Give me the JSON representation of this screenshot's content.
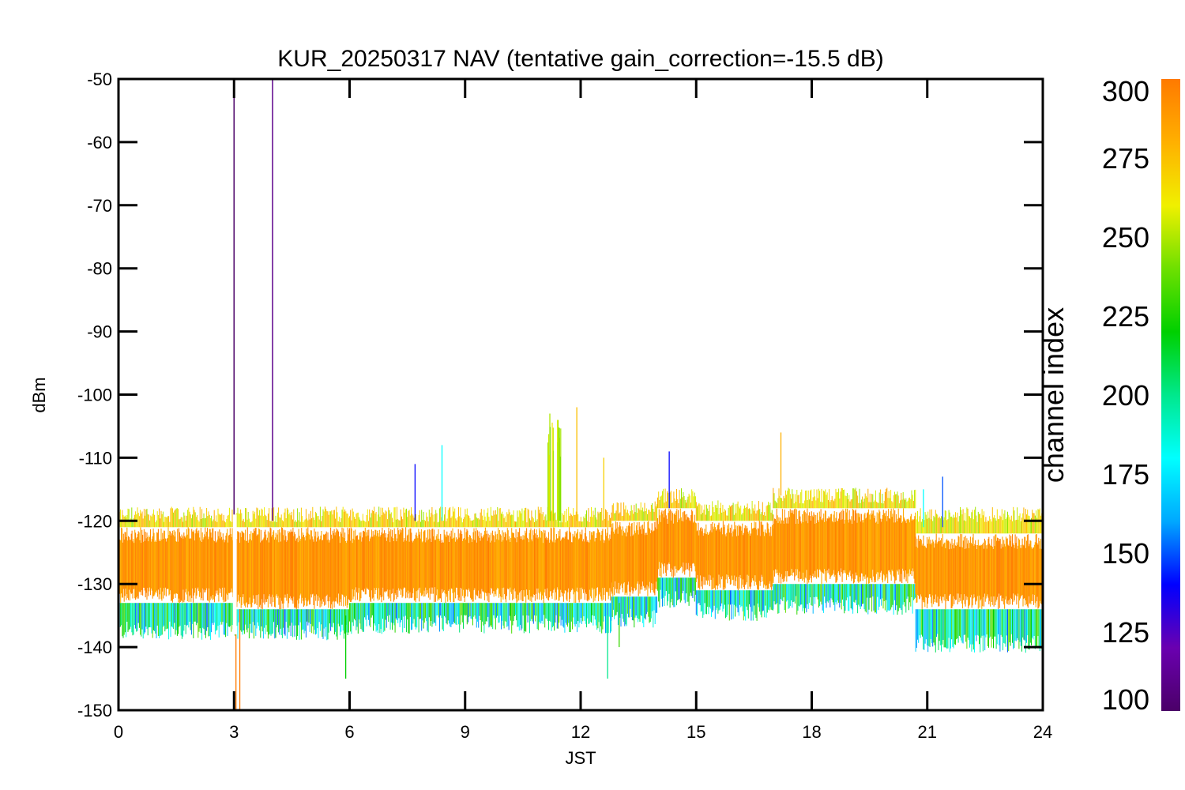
{
  "chart_data": {
    "type": "line",
    "title": "KUR_20250317 NAV (tentative gain_correction=-15.5 dB)",
    "xlabel": "JST",
    "ylabel": "dBm",
    "xlim": [
      0,
      24
    ],
    "ylim": [
      -150,
      -50
    ],
    "x_ticks": [
      0,
      3,
      6,
      9,
      12,
      15,
      18,
      21,
      24
    ],
    "y_ticks": [
      -50,
      -60,
      -70,
      -80,
      -90,
      -100,
      -110,
      -120,
      -130,
      -140,
      -150
    ],
    "grid": false,
    "colorbar": {
      "label": "channel index",
      "range": [
        100,
        300
      ],
      "ticks": [
        100,
        125,
        150,
        175,
        200,
        225,
        250,
        275,
        300
      ],
      "colors": [
        "#4b0068",
        "#6a00b0",
        "#0000ff",
        "#00a8ff",
        "#00ffff",
        "#00e88c",
        "#00d000",
        "#6ee000",
        "#f0f000",
        "#ffb000",
        "#ff7a00"
      ]
    },
    "bands": [
      {
        "x": [
          0,
          3
        ],
        "core": [
          -133,
          -121
        ],
        "envelope": [
          -138,
          -119
        ]
      },
      {
        "x": [
          3,
          6
        ],
        "core": [
          -134,
          -121
        ],
        "envelope": [
          -138,
          -119
        ]
      },
      {
        "x": [
          6,
          12.8
        ],
        "core": [
          -133,
          -121
        ],
        "envelope": [
          -137,
          -119
        ]
      },
      {
        "x": [
          12.8,
          14
        ],
        "core": [
          -132,
          -120
        ],
        "envelope": [
          -136,
          -118
        ]
      },
      {
        "x": [
          14,
          15
        ],
        "core": [
          -129,
          -118
        ],
        "envelope": [
          -133,
          -116
        ]
      },
      {
        "x": [
          15,
          17
        ],
        "core": [
          -131,
          -120
        ],
        "envelope": [
          -135,
          -118
        ]
      },
      {
        "x": [
          17,
          20.7
        ],
        "core": [
          -130,
          -118
        ],
        "envelope": [
          -134,
          -116
        ]
      },
      {
        "x": [
          20.7,
          24
        ],
        "core": [
          -134,
          -122
        ],
        "envelope": [
          -140,
          -119
        ]
      }
    ],
    "spikes": [
      {
        "x": 3.0,
        "y_top": -50,
        "y_bottom": -120,
        "channel": 100
      },
      {
        "x": 4.0,
        "y_top": -50,
        "y_bottom": -120,
        "channel": 110
      },
      {
        "x": 3.05,
        "y_top": -134,
        "y_bottom": -150,
        "channel": 300
      },
      {
        "x": 3.15,
        "y_top": -134,
        "y_bottom": -150,
        "channel": 300
      },
      {
        "x": 7.7,
        "y_top": -111,
        "y_bottom": -120,
        "channel": 140
      },
      {
        "x": 8.4,
        "y_top": -108,
        "y_bottom": -120,
        "channel": 180
      },
      {
        "x": 11.2,
        "y_top": -103,
        "y_bottom": -120,
        "channel": 250
      },
      {
        "x": 11.4,
        "y_top": -104,
        "y_bottom": -120,
        "channel": 260
      },
      {
        "x": 11.9,
        "y_top": -102,
        "y_bottom": -120,
        "channel": 275
      },
      {
        "x": 12.6,
        "y_top": -110,
        "y_bottom": -120,
        "channel": 270
      },
      {
        "x": 14.3,
        "y_top": -109,
        "y_bottom": -118,
        "channel": 140
      },
      {
        "x": 17.2,
        "y_top": -106,
        "y_bottom": -116,
        "channel": 280
      },
      {
        "x": 13.0,
        "y_top": -133,
        "y_bottom": -140,
        "channel": 230
      },
      {
        "x": 12.7,
        "y_top": -135,
        "y_bottom": -145,
        "channel": 200
      },
      {
        "x": 5.9,
        "y_top": -135,
        "y_bottom": -145,
        "channel": 220
      },
      {
        "x": 20.9,
        "y_top": -115,
        "y_bottom": -121,
        "channel": 180
      },
      {
        "x": 21.4,
        "y_top": -113,
        "y_bottom": -121,
        "channel": 150
      }
    ],
    "gap": {
      "x": [
        2.97,
        3.07
      ]
    }
  }
}
